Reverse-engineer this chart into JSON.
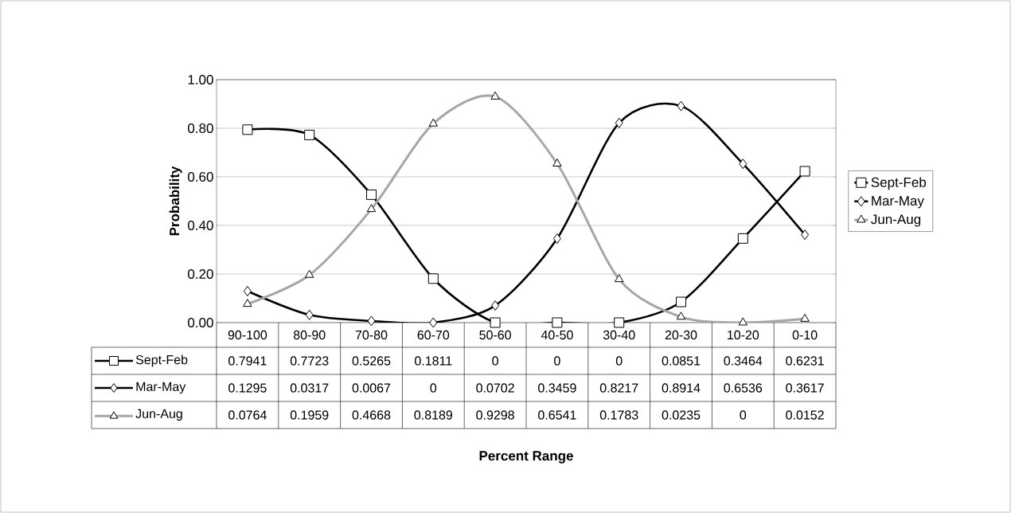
{
  "chart_data": {
    "type": "line",
    "annotations": [
      "Percent Range"
    ],
    "ylabel": "Probability",
    "categories": [
      "90-100",
      "80-90",
      "70-80",
      "60-70",
      "50-60",
      "40-50",
      "30-40",
      "20-30",
      "10-20",
      "0-10"
    ],
    "series": [
      {
        "name": "Sept-Feb",
        "color": "#000000",
        "marker": "square",
        "values": [
          0.7941,
          0.7723,
          0.5265,
          0.1811,
          0,
          0,
          0,
          0.0851,
          0.3464,
          0.6231
        ]
      },
      {
        "name": "Mar-May",
        "color": "#000000",
        "marker": "diamond",
        "values": [
          0.1295,
          0.0317,
          0.0067,
          0,
          0.0702,
          0.3459,
          0.8217,
          0.8914,
          0.6536,
          0.3617
        ]
      },
      {
        "name": "Jun-Aug",
        "color": "#a6a6a6",
        "marker": "triangle",
        "values": [
          0.0764,
          0.1959,
          0.4668,
          0.8189,
          0.9298,
          0.6541,
          0.1783,
          0.0235,
          0,
          0.0152
        ]
      }
    ],
    "ylim": [
      0,
      1
    ],
    "yticks": [
      {
        "value": 0,
        "label": "0.00"
      },
      {
        "value": 0.2,
        "label": "0.20"
      },
      {
        "value": 0.4,
        "label": "0.40"
      },
      {
        "value": 0.6,
        "label": "0.60"
      },
      {
        "value": 0.8,
        "label": "0.80"
      },
      {
        "value": 1,
        "label": "1.00"
      }
    ],
    "grid": "y",
    "legend": "right",
    "data_labels": true
  }
}
